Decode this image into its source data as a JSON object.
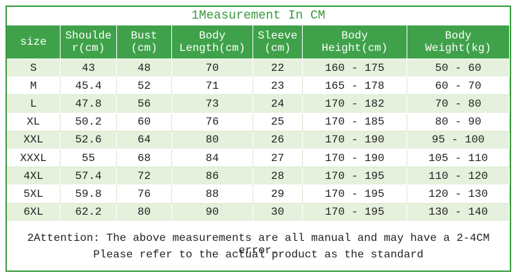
{
  "title": "1Measurement In CM",
  "table": {
    "header": [
      [
        "size"
      ],
      [
        "Shoulde",
        "r(cm)"
      ],
      [
        "Bust",
        "(cm)"
      ],
      [
        "Body",
        "Length(cm)"
      ],
      [
        "Sleeve",
        "(cm)"
      ],
      [
        "Body",
        "Height(cm)"
      ],
      [
        "Body",
        "Weight(kg)"
      ]
    ],
    "rows": [
      [
        "S",
        "43",
        "48",
        "70",
        "22",
        "160 - 175",
        "50 - 60"
      ],
      [
        "M",
        "45.4",
        "52",
        "71",
        "23",
        "165 - 178",
        "60 - 70"
      ],
      [
        "L",
        "47.8",
        "56",
        "73",
        "24",
        "170 - 182",
        "70 - 80"
      ],
      [
        "XL",
        "50.2",
        "60",
        "76",
        "25",
        "170 - 185",
        "80 - 90"
      ],
      [
        "XXL",
        "52.6",
        "64",
        "80",
        "26",
        "170 - 190",
        "95 - 100"
      ],
      [
        "XXXL",
        "55",
        "68",
        "84",
        "27",
        "170 - 190",
        "105 - 110"
      ],
      [
        "4XL",
        "57.4",
        "72",
        "86",
        "28",
        "170 - 195",
        "110 - 120"
      ],
      [
        "5XL",
        "59.8",
        "76",
        "88",
        "29",
        "170 - 195",
        "120 - 130"
      ],
      [
        "6XL",
        "62.2",
        "80",
        "90",
        "30",
        "170 - 195",
        "130 - 140"
      ]
    ]
  },
  "note": [
    "2Attention: The above measurements are all manual and may have a 2-4CM error.",
    "Please refer to the actual product as the standard"
  ]
}
